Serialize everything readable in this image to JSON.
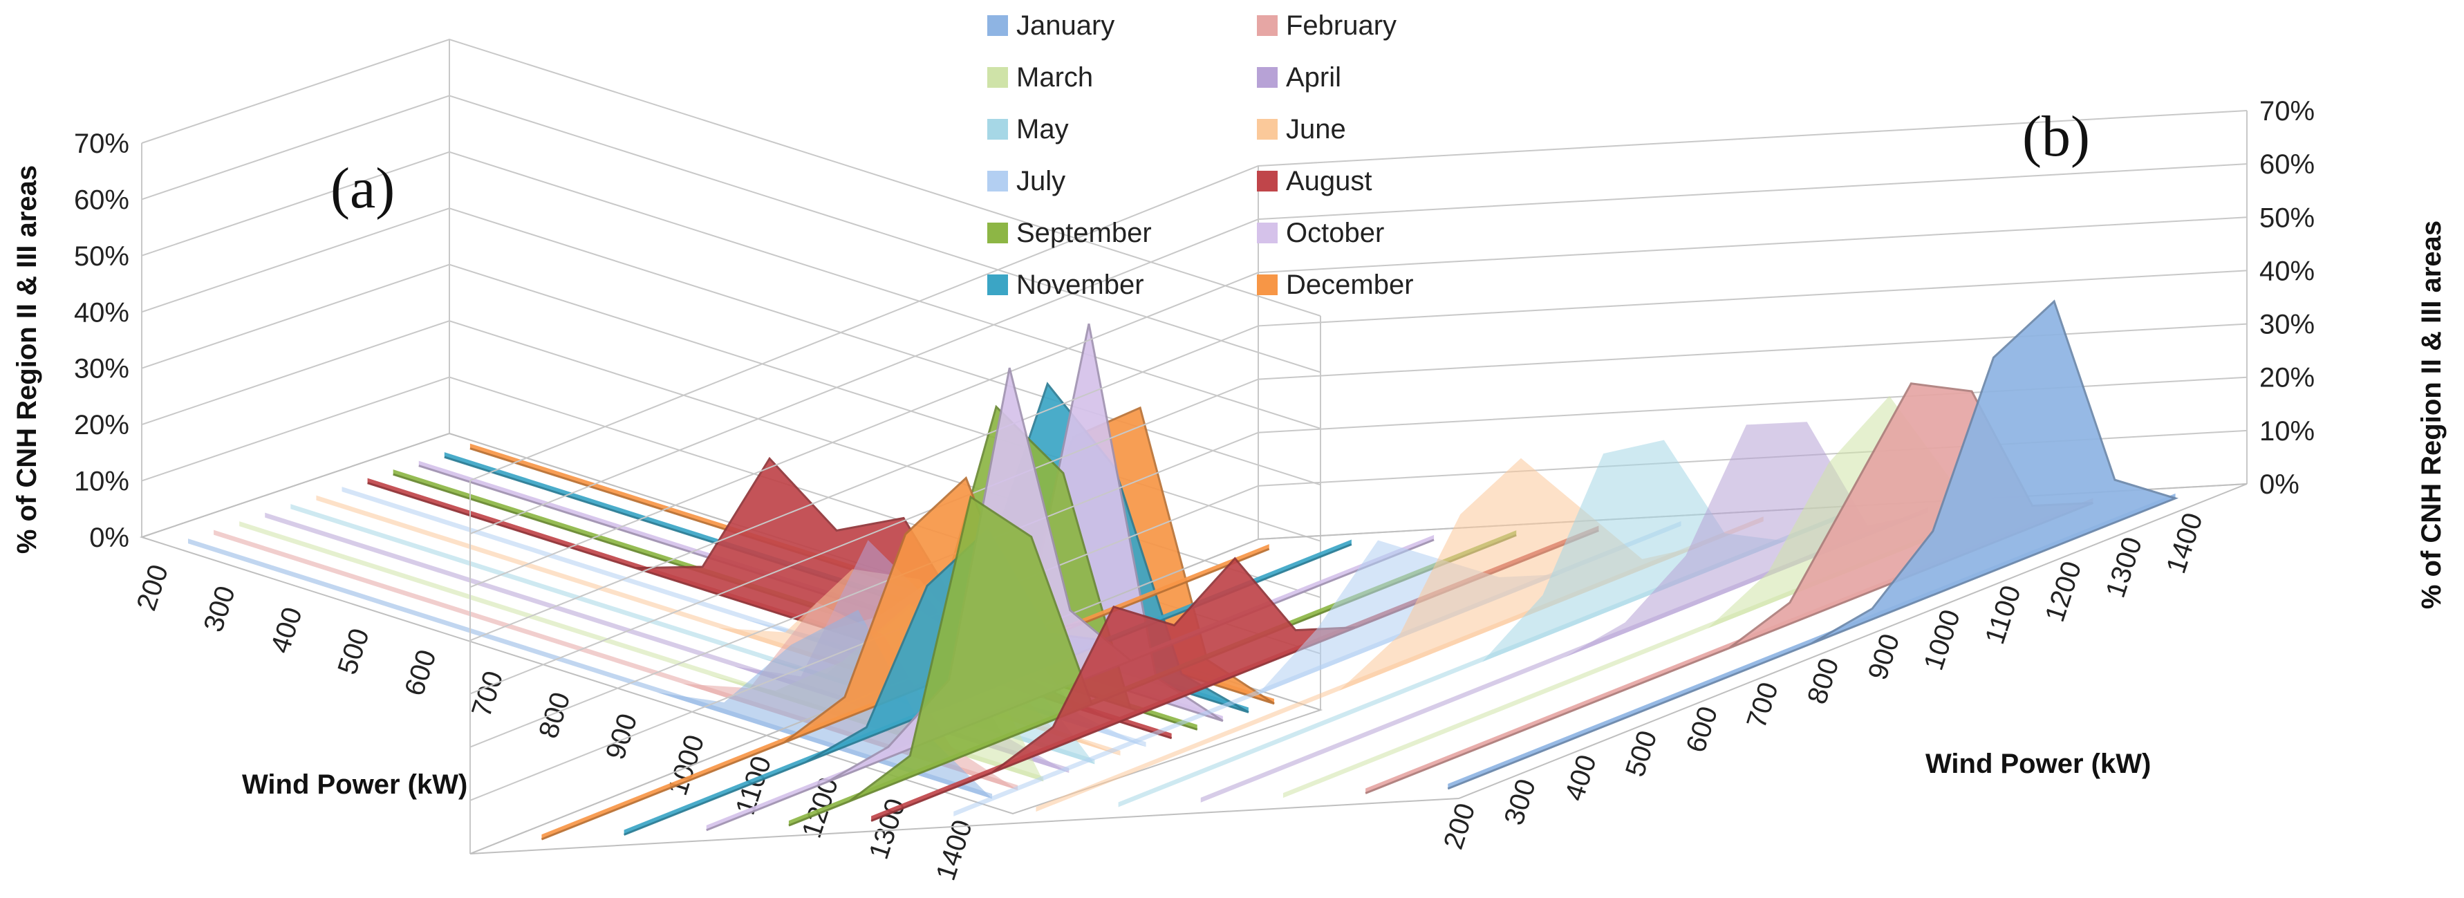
{
  "chart_data": {
    "type": "area",
    "subtype": "3d-area",
    "title": "",
    "legend": {
      "position": "top-center",
      "items": [
        {
          "name": "January",
          "color": "#8eb4e3"
        },
        {
          "name": "February",
          "color": "#e6a6a4"
        },
        {
          "name": "March",
          "color": "#cfe3a8"
        },
        {
          "name": "April",
          "color": "#b7a2d6"
        },
        {
          "name": "May",
          "color": "#a6d7e6"
        },
        {
          "name": "June",
          "color": "#fbc99a"
        },
        {
          "name": "July",
          "color": "#b3cff2"
        },
        {
          "name": "August",
          "color": "#c0454a"
        },
        {
          "name": "September",
          "color": "#8db645"
        },
        {
          "name": "October",
          "color": "#d5c2ea"
        },
        {
          "name": "November",
          "color": "#3ba5c5"
        },
        {
          "name": "December",
          "color": "#f79646"
        }
      ]
    },
    "x": [
      200,
      300,
      400,
      500,
      600,
      700,
      800,
      900,
      1000,
      1100,
      1200,
      1300,
      1400
    ],
    "ylim": [
      0,
      70
    ],
    "yticks": [
      0,
      10,
      20,
      30,
      40,
      50,
      60,
      70
    ],
    "ytick_labels": [
      "0%",
      "10%",
      "20%",
      "30%",
      "40%",
      "50%",
      "60%",
      "70%"
    ],
    "panels": [
      {
        "label": "(a)",
        "xlabel": "Wind Power (kW)",
        "ylabel": "% of CNH Region II & III areas",
        "x_tick_labels": [
          "200",
          "300",
          "400",
          "500",
          "600",
          "700",
          "800",
          "900",
          "1000",
          "1100",
          "1200",
          "1300",
          "1400"
        ],
        "series": [
          {
            "name": "January",
            "values": [
              0,
              0,
              0,
              0,
              0,
              0,
              0,
              0,
              2,
              16,
              26,
              8,
              0
            ]
          },
          {
            "name": "February",
            "values": [
              0,
              0,
              0,
              0,
              0,
              0,
              0,
              0,
              3,
              22,
              20,
              4,
              0
            ]
          },
          {
            "name": "March",
            "values": [
              0,
              0,
              0,
              0,
              0,
              0,
              0,
              0,
              1,
              10,
              24,
              20,
              0
            ]
          },
          {
            "name": "April",
            "values": [
              0,
              0,
              0,
              0,
              0,
              0,
              0,
              0,
              2,
              30,
              22,
              3,
              0
            ]
          },
          {
            "name": "May",
            "values": [
              0,
              0,
              0,
              0,
              0,
              0,
              0,
              0,
              1,
              14,
              28,
              12,
              0
            ]
          },
          {
            "name": "June",
            "values": [
              0,
              0,
              0,
              0,
              0,
              0,
              0,
              3,
              18,
              20,
              10,
              1,
              0
            ]
          },
          {
            "name": "July",
            "values": [
              0,
              0,
              0,
              0,
              0,
              0,
              0,
              1,
              8,
              20,
              14,
              2,
              0
            ]
          },
          {
            "name": "August",
            "values": [
              0,
              0,
              0,
              0,
              0,
              4,
              27,
              18,
              24,
              8,
              2,
              0,
              0
            ]
          },
          {
            "name": "September",
            "values": [
              0,
              0,
              0,
              0,
              0,
              0,
              0,
              0,
              0,
              46,
              38,
              0,
              0
            ]
          },
          {
            "name": "October",
            "values": [
              0,
              0,
              0,
              0,
              0,
              0,
              0,
              0,
              0,
              2,
              63,
              4,
              0
            ]
          },
          {
            "name": "November",
            "values": [
              0,
              0,
              0,
              0,
              0,
              0,
              0,
              0,
              8,
              47,
              36,
              3,
              0
            ]
          },
          {
            "name": "December",
            "values": [
              0,
              0,
              0,
              0,
              0,
              0,
              0,
              0,
              0,
              36,
              45,
              4,
              0
            ]
          }
        ]
      },
      {
        "label": "(b)",
        "xlabel": "Wind Power (kW)",
        "ylabel": "% of CNH Region II & III areas",
        "x_tick_labels": [
          "1400",
          "1300",
          "1200",
          "1100",
          "1000",
          "900",
          "800",
          "700",
          "600",
          "500",
          "400",
          "300",
          "200"
        ],
        "series": [
          {
            "name": "January",
            "values": [
              0,
              8,
              46,
              40,
              12,
              2,
              0,
              0,
              0,
              0,
              0,
              0,
              0
            ]
          },
          {
            "name": "February",
            "values": [
              0,
              4,
              30,
              36,
              20,
              4,
              0,
              0,
              0,
              0,
              0,
              0,
              0
            ]
          },
          {
            "name": "March",
            "values": [
              0,
              10,
              30,
              22,
              6,
              0,
              0,
              0,
              0,
              0,
              0,
              0,
              0
            ]
          },
          {
            "name": "April",
            "values": [
              0,
              2,
              26,
              30,
              10,
              2,
              0,
              0,
              0,
              0,
              0,
              0,
              0
            ]
          },
          {
            "name": "May",
            "values": [
              0,
              0,
              6,
              28,
              30,
              8,
              0,
              0,
              0,
              0,
              0,
              0,
              0
            ]
          },
          {
            "name": "June",
            "values": [
              0,
              0,
              2,
              16,
              30,
              24,
              6,
              0,
              0,
              0,
              0,
              0,
              0
            ]
          },
          {
            "name": "July",
            "values": [
              0,
              0,
              0,
              4,
              12,
              20,
              8,
              0,
              0,
              0,
              0,
              0,
              0
            ]
          },
          {
            "name": "August",
            "values": [
              0,
              0,
              0,
              0,
              0,
              4,
              22,
              14,
              22,
              4,
              0,
              0,
              0
            ]
          },
          {
            "name": "September",
            "values": [
              0,
              0,
              0,
              0,
              0,
              0,
              0,
              0,
              36,
              48,
              4,
              0,
              0
            ]
          },
          {
            "name": "October",
            "values": [
              0,
              0,
              0,
              0,
              0,
              0,
              14,
              64,
              10,
              2,
              0,
              0,
              0
            ]
          },
          {
            "name": "November",
            "values": [
              0,
              0,
              0,
              0,
              0,
              6,
              30,
              24,
              2,
              0,
              0,
              0,
              0
            ]
          },
          {
            "name": "December",
            "values": [
              0,
              0,
              0,
              0,
              2,
              36,
              30,
              4,
              0,
              0,
              0,
              0,
              0
            ]
          }
        ]
      }
    ]
  }
}
